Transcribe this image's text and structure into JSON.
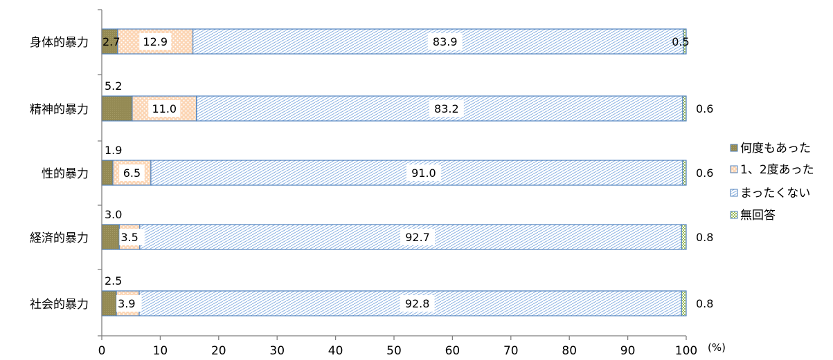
{
  "chart_data": {
    "type": "bar",
    "orientation": "horizontal",
    "stacked": true,
    "categories": [
      "身体的暴力",
      "精神的暴力",
      "性的暴力",
      "経済的暴力",
      "社会的暴力"
    ],
    "series": [
      {
        "name": "何度もあった",
        "values": [
          2.7,
          5.2,
          1.9,
          3.0,
          2.5
        ],
        "color": "#948a54"
      },
      {
        "name": "1、2度あった",
        "values": [
          12.9,
          11.0,
          6.5,
          3.5,
          3.9
        ],
        "color": "#fac090"
      },
      {
        "name": "まったくない",
        "values": [
          83.9,
          83.2,
          91.0,
          92.7,
          92.8
        ],
        "color": "#b9cde5"
      },
      {
        "name": "無回答",
        "values": [
          0.5,
          0.6,
          0.6,
          0.8,
          0.8
        ],
        "color": "#9bbb59"
      }
    ],
    "value_labels": [
      [
        "2.7",
        "12.9",
        "83.9",
        "0.5"
      ],
      [
        "5.2",
        "11.0",
        "83.2",
        "0.6"
      ],
      [
        "1.9",
        "6.5",
        "91.0",
        "0.6"
      ],
      [
        "3.0",
        "3.5",
        "92.7",
        "0.8"
      ],
      [
        "2.5",
        "3.9",
        "92.8",
        "0.8"
      ]
    ],
    "x_ticks": [
      "0",
      "10",
      "20",
      "30",
      "40",
      "50",
      "60",
      "70",
      "80",
      "90",
      "100"
    ],
    "xlim": [
      0,
      100
    ],
    "x_unit": "(%)",
    "legend_position": "right",
    "grid": false,
    "border_color": "#4f81bd"
  }
}
